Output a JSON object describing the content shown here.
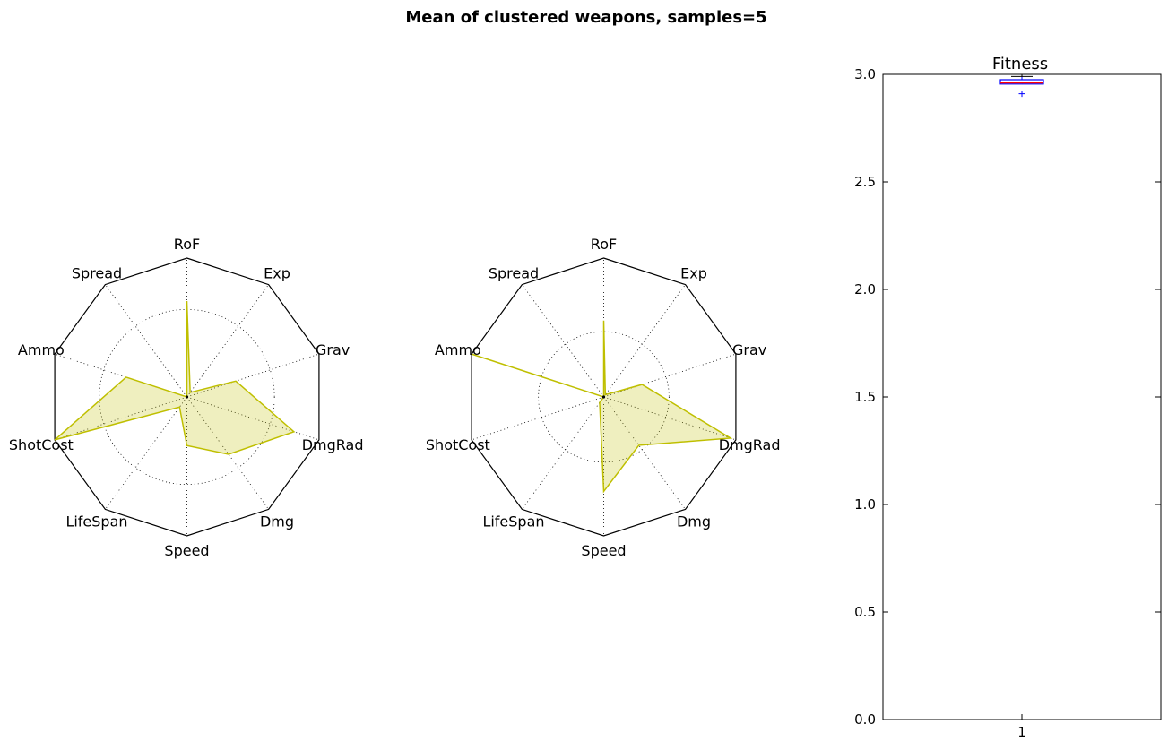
{
  "figure": {
    "title": "Mean of clustered weapons, samples=5"
  },
  "chart_data": [
    {
      "type": "radar",
      "axes": [
        "RoF",
        "Exp",
        "Grav",
        "DmgRad",
        "Dmg",
        "Speed",
        "LifeSpan",
        "ShotCost",
        "Ammo",
        "Spread"
      ],
      "rlim": [
        0,
        1
      ],
      "grid_rings": [
        0.63
      ],
      "values": [
        0.69,
        0.04,
        0.37,
        0.81,
        0.51,
        0.35,
        0.09,
        1.0,
        0.46,
        0.0
      ],
      "color": "#bfbf00"
    },
    {
      "type": "radar",
      "axes": [
        "RoF",
        "Exp",
        "Grav",
        "DmgRad",
        "Dmg",
        "Speed",
        "LifeSpan",
        "ShotCost",
        "Ammo",
        "Spread"
      ],
      "rlim": [
        0,
        1
      ],
      "grid_rings": [
        0.47
      ],
      "values": [
        0.55,
        0.02,
        0.29,
        0.96,
        0.43,
        0.68,
        0.05,
        0.0,
        1.0,
        0.0
      ],
      "color": "#bfbf00"
    },
    {
      "type": "box",
      "title": "Fitness",
      "categories": [
        "1"
      ],
      "ylim": [
        0.0,
        3.0
      ],
      "yticks": [
        "0.0",
        "0.5",
        "1.0",
        "1.5",
        "2.0",
        "2.5",
        "3.0"
      ],
      "xticks": [
        "1"
      ],
      "boxes": [
        {
          "q1": 2.955,
          "median": 2.96,
          "q3": 2.975,
          "whisker_low": 2.955,
          "whisker_high": 2.99,
          "outliers": [
            2.91
          ]
        }
      ],
      "colors": {
        "box": "#0000ff",
        "median": "#ff0000",
        "outlier": "#0000ff"
      }
    }
  ]
}
